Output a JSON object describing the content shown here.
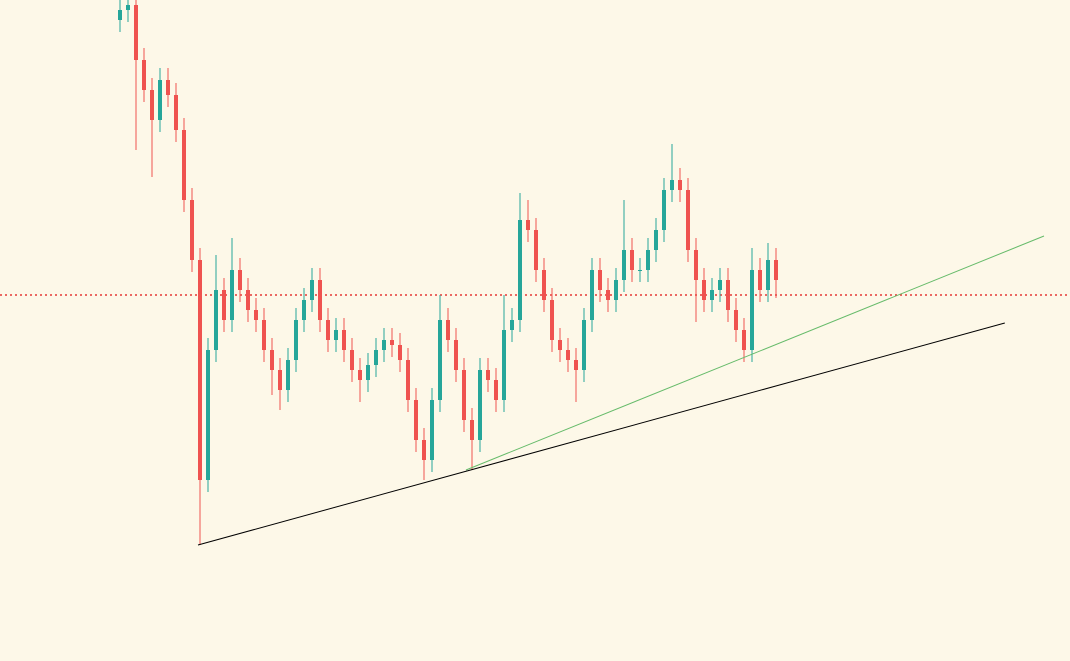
{
  "chart_data": {
    "type": "candlestick",
    "up_color": "#26a69a",
    "down_color": "#ef5350",
    "xlim": [
      0,
      118
    ],
    "ylim": [
      0,
      661
    ],
    "open": [
      641,
      651,
      656,
      601,
      571,
      541,
      581,
      566,
      531,
      461,
      401,
      181,
      311,
      371,
      341,
      391,
      371,
      351,
      341,
      311,
      291,
      271,
      301,
      341,
      361,
      381,
      341,
      321,
      331,
      311,
      291,
      281,
      296,
      311,
      321,
      316,
      301,
      261,
      221,
      201,
      261,
      341,
      321,
      291,
      241,
      221,
      291,
      281,
      261,
      331,
      341,
      441,
      431,
      391,
      361,
      321,
      311,
      301,
      291,
      341,
      391,
      371,
      361,
      381,
      411,
      391,
      391,
      411,
      431,
      471,
      481,
      471,
      411,
      381,
      361,
      371,
      381,
      351,
      331,
      311,
      391,
      371,
      401
    ],
    "high": [
      661,
      661,
      661,
      613,
      583,
      593,
      593,
      578,
      543,
      473,
      413,
      323,
      406,
      383,
      423,
      403,
      383,
      363,
      353,
      323,
      303,
      313,
      353,
      373,
      393,
      393,
      353,
      343,
      343,
      323,
      303,
      308,
      323,
      333,
      333,
      328,
      313,
      273,
      233,
      273,
      366,
      353,
      333,
      303,
      253,
      303,
      303,
      293,
      366,
      353,
      468,
      461,
      443,
      403,
      373,
      333,
      323,
      313,
      353,
      403,
      403,
      383,
      393,
      461,
      423,
      403,
      423,
      443,
      483,
      517,
      493,
      483,
      423,
      393,
      383,
      393,
      393,
      363,
      343,
      413,
      403,
      418,
      413
    ],
    "low": [
      629,
      639,
      511,
      559,
      484,
      529,
      554,
      519,
      449,
      389,
      116,
      169,
      299,
      329,
      329,
      359,
      339,
      329,
      299,
      266,
      251,
      259,
      289,
      329,
      349,
      329,
      309,
      309,
      299,
      279,
      259,
      269,
      284,
      299,
      304,
      289,
      249,
      209,
      181,
      189,
      249,
      309,
      279,
      229,
      191,
      209,
      269,
      249,
      249,
      319,
      329,
      419,
      379,
      349,
      309,
      299,
      289,
      259,
      279,
      329,
      359,
      349,
      349,
      369,
      379,
      379,
      379,
      399,
      419,
      459,
      459,
      399,
      339,
      349,
      349,
      359,
      339,
      319,
      299,
      299,
      359,
      359,
      363
    ],
    "close": [
      651,
      656,
      601,
      571,
      541,
      581,
      566,
      531,
      461,
      401,
      181,
      311,
      371,
      341,
      391,
      371,
      351,
      341,
      311,
      291,
      271,
      301,
      341,
      361,
      381,
      341,
      321,
      331,
      311,
      291,
      281,
      296,
      311,
      321,
      316,
      301,
      261,
      221,
      201,
      261,
      341,
      321,
      291,
      241,
      221,
      291,
      281,
      261,
      331,
      341,
      441,
      431,
      391,
      361,
      321,
      311,
      301,
      291,
      341,
      391,
      371,
      361,
      381,
      411,
      391,
      391,
      411,
      431,
      471,
      481,
      471,
      411,
      381,
      361,
      371,
      381,
      351,
      331,
      311,
      391,
      371,
      401,
      381
    ],
    "hline": {
      "value": 366,
      "color": "#e53935"
    },
    "trendlines": [
      {
        "color": "#000000",
        "x": [
          9.75,
          110.6
        ],
        "values": [
          116,
          338
        ]
      },
      {
        "color": "#66bb6a",
        "x": [
          43.25,
          115.5
        ],
        "values": [
          191,
          425
        ]
      }
    ]
  }
}
